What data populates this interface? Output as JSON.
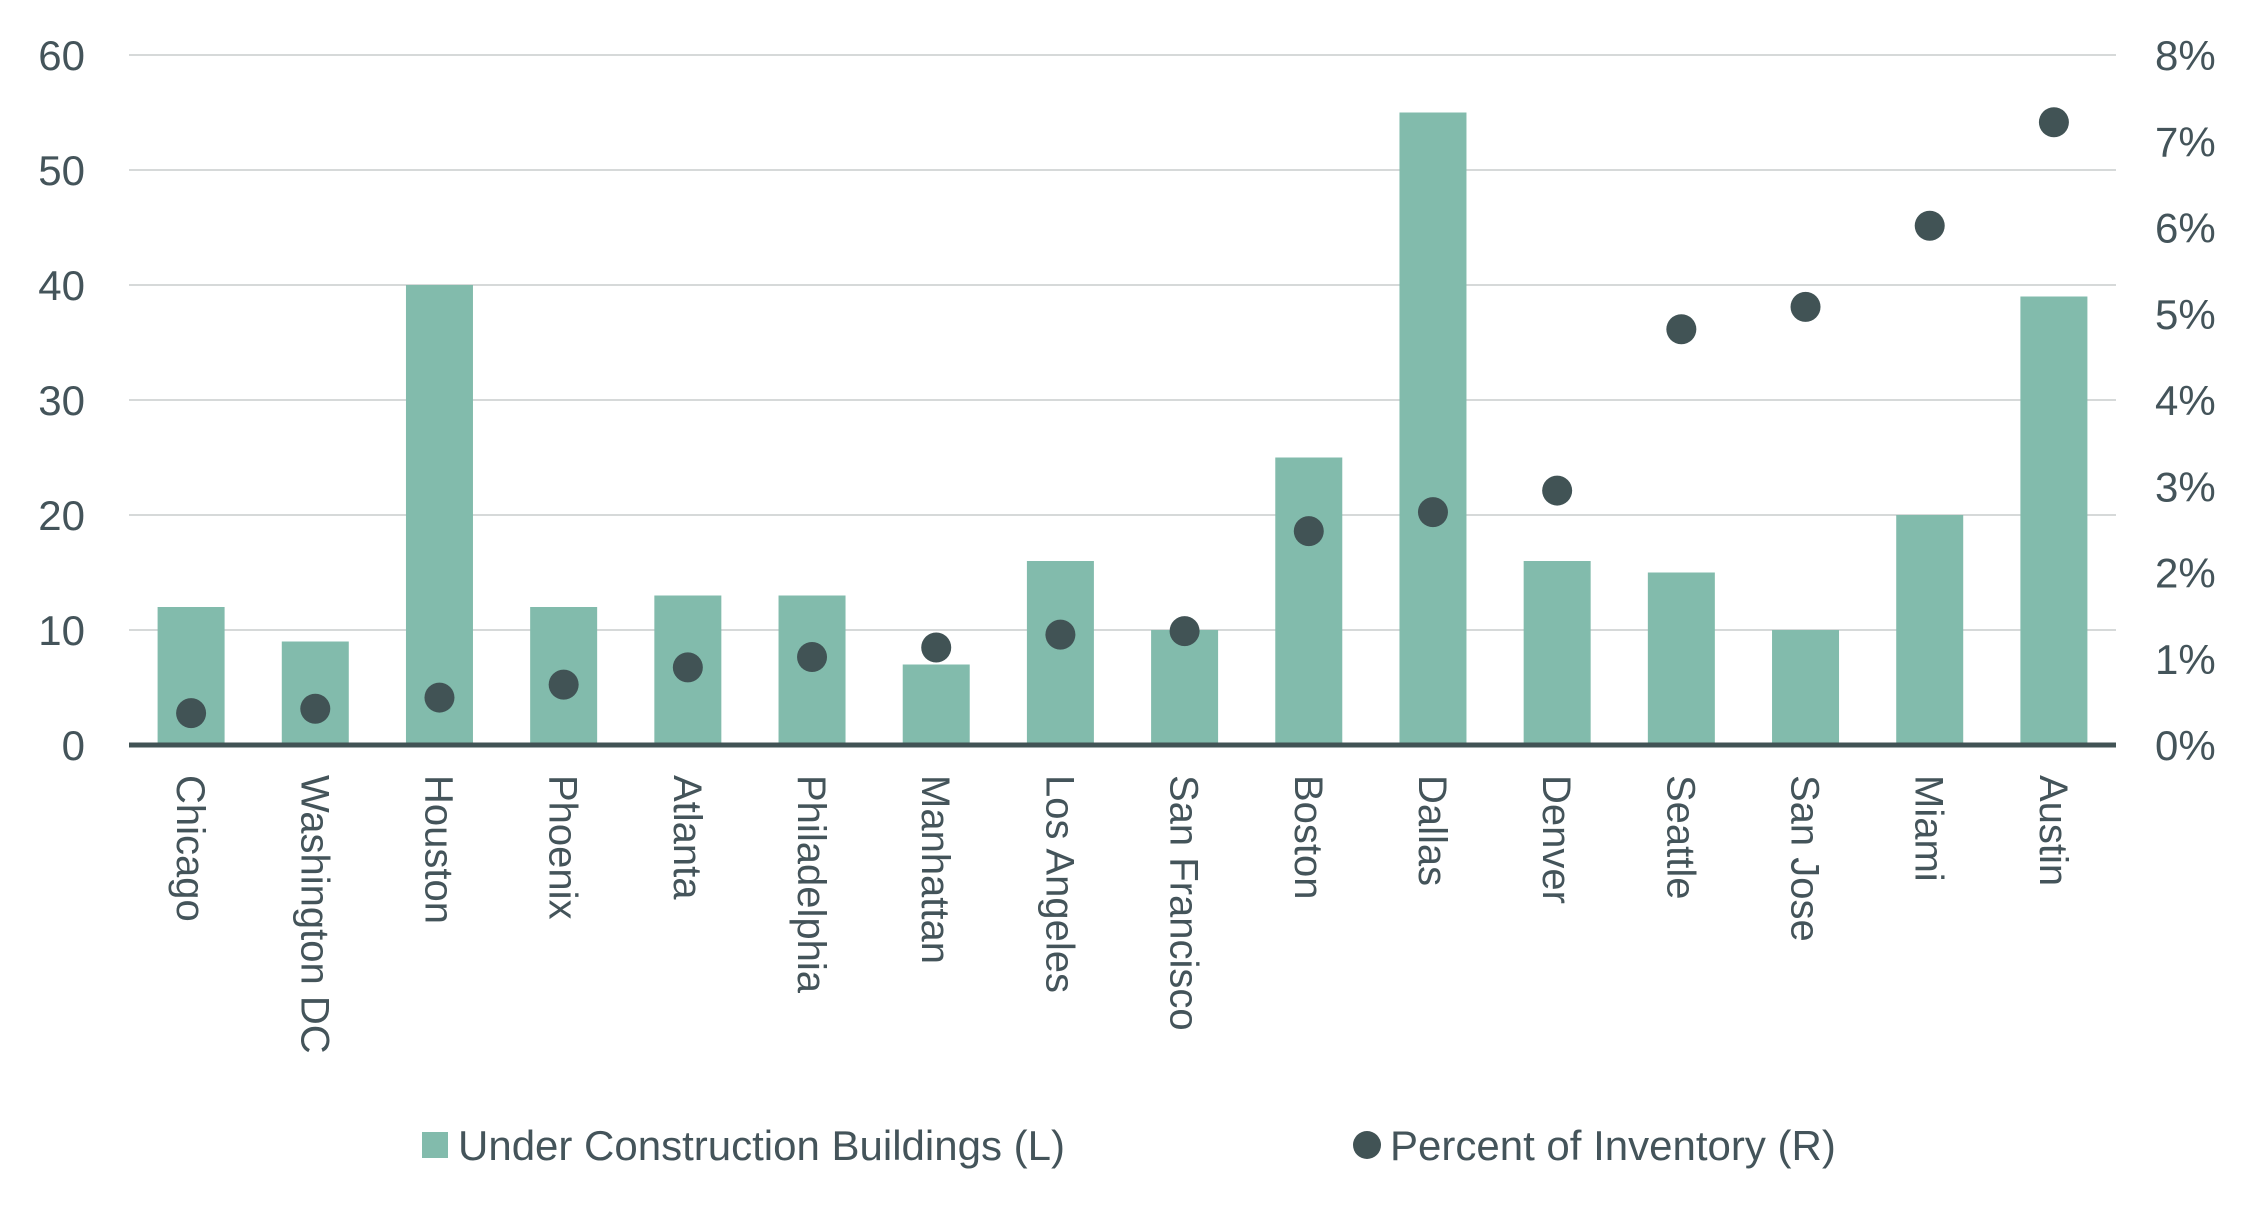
{
  "chart_data": {
    "type": "bar",
    "title": "",
    "xlabel": "",
    "ylabel": "",
    "categories": [
      "Chicago",
      "Washington DC",
      "Houston",
      "Phoenix",
      "Atlanta",
      "Philadelphia",
      "Manhattan",
      "Los Angeles",
      "San Francisco",
      "Boston",
      "Dallas",
      "Denver",
      "Seattle",
      "San Jose",
      "Miami",
      "Austin"
    ],
    "series": [
      {
        "name": "Under Construction Buildings (L)",
        "type": "bar",
        "axis": "left",
        "color": "#82bbac",
        "values": [
          12,
          9,
          40,
          12,
          13,
          13,
          7,
          16,
          10,
          25,
          55,
          16,
          15,
          10,
          20,
          39
        ]
      },
      {
        "name": "Percent of Inventory (R)",
        "type": "scatter",
        "axis": "right",
        "color": "#415355",
        "values": [
          0.37,
          0.42,
          0.55,
          0.7,
          0.9,
          1.02,
          1.13,
          1.28,
          1.32,
          2.48,
          2.7,
          2.95,
          4.82,
          5.08,
          6.02,
          7.22
        ]
      }
    ],
    "ylim": [
      0,
      60
    ],
    "yticks": [
      "0",
      "10",
      "20",
      "30",
      "40",
      "50",
      "60"
    ],
    "y2lim": [
      0,
      8
    ],
    "y2ticks": [
      "0%",
      "1%",
      "2%",
      "3%",
      "4%",
      "5%",
      "6%",
      "7%",
      "8%"
    ],
    "grid": true,
    "legend_position": "bottom"
  }
}
